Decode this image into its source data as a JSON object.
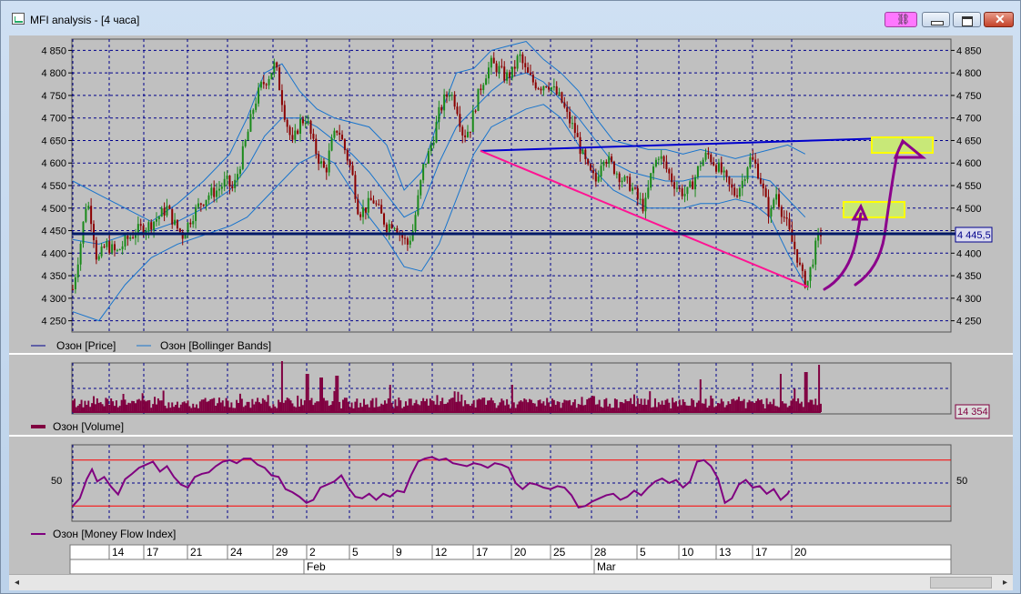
{
  "window": {
    "title": "MFI analysis - [4 часа]",
    "link_icon": "link-icon",
    "minimize_icon": "minimize-icon",
    "maximize_icon": "maximize-icon",
    "close_icon": "close-icon"
  },
  "colors": {
    "candle_up": "#1a8a1a",
    "candle_down": "#8b0000",
    "bollinger": "#1874cd",
    "volume": "#800040",
    "mfi": "#800080",
    "mfi_levels": "#ff0000",
    "grid": "#00008b",
    "trend_blue": "#0000cd",
    "trend_pink": "#ff1493",
    "highlight_fill": "#c8e878",
    "highlight_border": "#ffff00",
    "annotation": "#8b008b"
  },
  "chart_data": [
    {
      "type": "candlestick",
      "legend": [
        "Озон [Price]",
        "Озон [Bollinger Bands]"
      ],
      "y_ticks": [
        "4 850",
        "4 800",
        "4 750",
        "4 700",
        "4 650",
        "4 600",
        "4 550",
        "4 500",
        "4 450",
        "4 400",
        "4 350",
        "4 300",
        "4 250"
      ],
      "y_tick_values": [
        4850,
        4800,
        4750,
        4700,
        4650,
        4600,
        4550,
        4500,
        4450,
        4400,
        4350,
        4300,
        4250
      ],
      "ylim": [
        4225,
        4875
      ],
      "current_price_label": "4 445,5",
      "current_price": 4445.5,
      "close_path": [
        [
          0,
          4320
        ],
        [
          8,
          4410
        ],
        [
          16,
          4520
        ],
        [
          22,
          4470
        ],
        [
          28,
          4380
        ],
        [
          38,
          4420
        ],
        [
          50,
          4400
        ],
        [
          62,
          4430
        ],
        [
          74,
          4450
        ],
        [
          86,
          4460
        ],
        [
          98,
          4480
        ],
        [
          108,
          4500
        ],
        [
          118,
          4460
        ],
        [
          126,
          4440
        ],
        [
          136,
          4480
        ],
        [
          146,
          4510
        ],
        [
          156,
          4530
        ],
        [
          166,
          4540
        ],
        [
          176,
          4560
        ],
        [
          184,
          4540
        ],
        [
          192,
          4600
        ],
        [
          200,
          4660
        ],
        [
          208,
          4730
        ],
        [
          216,
          4770
        ],
        [
          224,
          4790
        ],
        [
          232,
          4820
        ],
        [
          238,
          4760
        ],
        [
          244,
          4700
        ],
        [
          252,
          4640
        ],
        [
          260,
          4690
        ],
        [
          268,
          4700
        ],
        [
          276,
          4640
        ],
        [
          284,
          4600
        ],
        [
          290,
          4580
        ],
        [
          296,
          4640
        ],
        [
          304,
          4680
        ],
        [
          312,
          4630
        ],
        [
          320,
          4580
        ],
        [
          328,
          4490
        ],
        [
          336,
          4500
        ],
        [
          344,
          4520
        ],
        [
          352,
          4490
        ],
        [
          360,
          4460
        ],
        [
          368,
          4470
        ],
        [
          376,
          4440
        ],
        [
          384,
          4420
        ],
        [
          390,
          4450
        ],
        [
          396,
          4520
        ],
        [
          402,
          4590
        ],
        [
          408,
          4620
        ],
        [
          414,
          4660
        ],
        [
          420,
          4710
        ],
        [
          426,
          4740
        ],
        [
          432,
          4760
        ],
        [
          440,
          4730
        ],
        [
          448,
          4660
        ],
        [
          456,
          4680
        ],
        [
          462,
          4730
        ],
        [
          468,
          4770
        ],
        [
          474,
          4800
        ],
        [
          480,
          4820
        ],
        [
          488,
          4810
        ],
        [
          496,
          4790
        ],
        [
          504,
          4800
        ],
        [
          512,
          4840
        ],
        [
          520,
          4800
        ],
        [
          528,
          4780
        ],
        [
          536,
          4770
        ],
        [
          544,
          4780
        ],
        [
          552,
          4760
        ],
        [
          560,
          4740
        ],
        [
          568,
          4700
        ],
        [
          576,
          4670
        ],
        [
          584,
          4620
        ],
        [
          592,
          4580
        ],
        [
          600,
          4560
        ],
        [
          608,
          4620
        ],
        [
          616,
          4600
        ],
        [
          624,
          4580
        ],
        [
          632,
          4560
        ],
        [
          640,
          4550
        ],
        [
          648,
          4520
        ],
        [
          656,
          4500
        ],
        [
          664,
          4580
        ],
        [
          672,
          4620
        ],
        [
          680,
          4590
        ],
        [
          688,
          4560
        ],
        [
          696,
          4540
        ],
        [
          704,
          4530
        ],
        [
          712,
          4560
        ],
        [
          720,
          4600
        ],
        [
          728,
          4620
        ],
        [
          736,
          4600
        ],
        [
          744,
          4580
        ],
        [
          752,
          4550
        ],
        [
          760,
          4530
        ],
        [
          768,
          4560
        ],
        [
          776,
          4610
        ],
        [
          782,
          4600
        ],
        [
          788,
          4570
        ],
        [
          794,
          4520
        ],
        [
          800,
          4480
        ],
        [
          806,
          4540
        ],
        [
          812,
          4500
        ],
        [
          818,
          4470
        ],
        [
          824,
          4430
        ],
        [
          830,
          4400
        ],
        [
          836,
          4350
        ],
        [
          842,
          4330
        ],
        [
          848,
          4380
        ],
        [
          854,
          4430
        ],
        [
          858,
          4445
        ]
      ],
      "bb_upper": [
        [
          0,
          4560
        ],
        [
          30,
          4530
        ],
        [
          60,
          4500
        ],
        [
          90,
          4470
        ],
        [
          120,
          4510
        ],
        [
          150,
          4560
        ],
        [
          180,
          4620
        ],
        [
          200,
          4700
        ],
        [
          220,
          4800
        ],
        [
          240,
          4820
        ],
        [
          260,
          4760
        ],
        [
          280,
          4720
        ],
        [
          300,
          4700
        ],
        [
          320,
          4690
        ],
        [
          340,
          4680
        ],
        [
          360,
          4640
        ],
        [
          380,
          4540
        ],
        [
          400,
          4580
        ],
        [
          420,
          4700
        ],
        [
          440,
          4800
        ],
        [
          460,
          4810
        ],
        [
          480,
          4850
        ],
        [
          500,
          4860
        ],
        [
          520,
          4870
        ],
        [
          540,
          4830
        ],
        [
          560,
          4800
        ],
        [
          580,
          4760
        ],
        [
          600,
          4700
        ],
        [
          620,
          4650
        ],
        [
          640,
          4640
        ],
        [
          660,
          4630
        ],
        [
          680,
          4630
        ],
        [
          700,
          4620
        ],
        [
          720,
          4630
        ],
        [
          740,
          4620
        ],
        [
          760,
          4610
        ],
        [
          780,
          4620
        ],
        [
          800,
          4630
        ],
        [
          820,
          4640
        ],
        [
          840,
          4620
        ]
      ],
      "bb_mid": [
        [
          0,
          4430
        ],
        [
          30,
          4420
        ],
        [
          60,
          4440
        ],
        [
          90,
          4450
        ],
        [
          120,
          4470
        ],
        [
          150,
          4500
        ],
        [
          180,
          4540
        ],
        [
          200,
          4590
        ],
        [
          220,
          4660
        ],
        [
          240,
          4700
        ],
        [
          260,
          4700
        ],
        [
          280,
          4680
        ],
        [
          300,
          4650
        ],
        [
          320,
          4620
        ],
        [
          340,
          4580
        ],
        [
          360,
          4530
        ],
        [
          380,
          4480
        ],
        [
          400,
          4500
        ],
        [
          420,
          4600
        ],
        [
          440,
          4680
        ],
        [
          460,
          4720
        ],
        [
          480,
          4760
        ],
        [
          500,
          4790
        ],
        [
          520,
          4800
        ],
        [
          540,
          4780
        ],
        [
          560,
          4740
        ],
        [
          580,
          4700
        ],
        [
          600,
          4650
        ],
        [
          620,
          4600
        ],
        [
          640,
          4580
        ],
        [
          660,
          4570
        ],
        [
          680,
          4560
        ],
        [
          700,
          4560
        ],
        [
          720,
          4570
        ],
        [
          740,
          4570
        ],
        [
          760,
          4570
        ],
        [
          780,
          4570
        ],
        [
          800,
          4560
        ],
        [
          820,
          4520
        ],
        [
          840,
          4480
        ]
      ],
      "bb_lower": [
        [
          0,
          4270
        ],
        [
          30,
          4250
        ],
        [
          60,
          4330
        ],
        [
          90,
          4390
        ],
        [
          120,
          4420
        ],
        [
          150,
          4440
        ],
        [
          180,
          4460
        ],
        [
          200,
          4480
        ],
        [
          220,
          4520
        ],
        [
          240,
          4560
        ],
        [
          260,
          4600
        ],
        [
          280,
          4620
        ],
        [
          300,
          4600
        ],
        [
          320,
          4540
        ],
        [
          340,
          4480
        ],
        [
          360,
          4430
        ],
        [
          380,
          4370
        ],
        [
          400,
          4360
        ],
        [
          420,
          4420
        ],
        [
          440,
          4520
        ],
        [
          460,
          4620
        ],
        [
          480,
          4680
        ],
        [
          500,
          4700
        ],
        [
          520,
          4720
        ],
        [
          540,
          4730
        ],
        [
          560,
          4700
        ],
        [
          580,
          4640
        ],
        [
          600,
          4580
        ],
        [
          620,
          4540
        ],
        [
          640,
          4520
        ],
        [
          660,
          4500
        ],
        [
          680,
          4500
        ],
        [
          700,
          4500
        ],
        [
          720,
          4510
        ],
        [
          740,
          4510
        ],
        [
          760,
          4520
        ],
        [
          780,
          4510
        ],
        [
          800,
          4480
        ],
        [
          820,
          4400
        ],
        [
          840,
          4330
        ]
      ]
    },
    {
      "type": "bar",
      "legend": [
        "Озон [Volume]"
      ],
      "current_value_label": "14 354",
      "current_value": 14354
    },
    {
      "type": "line",
      "legend": [
        "Озон [Money Flow Index]"
      ],
      "y_ticks": [
        "50"
      ],
      "ylim": [
        0,
        100
      ],
      "levels": [
        80,
        20
      ],
      "values": [
        [
          0,
          20
        ],
        [
          8,
          30
        ],
        [
          16,
          55
        ],
        [
          22,
          68
        ],
        [
          28,
          52
        ],
        [
          36,
          58
        ],
        [
          44,
          45
        ],
        [
          52,
          35
        ],
        [
          60,
          55
        ],
        [
          68,
          62
        ],
        [
          76,
          70
        ],
        [
          84,
          74
        ],
        [
          92,
          78
        ],
        [
          100,
          65
        ],
        [
          108,
          72
        ],
        [
          116,
          58
        ],
        [
          124,
          48
        ],
        [
          132,
          44
        ],
        [
          140,
          58
        ],
        [
          148,
          62
        ],
        [
          156,
          64
        ],
        [
          164,
          72
        ],
        [
          172,
          78
        ],
        [
          180,
          80
        ],
        [
          188,
          76
        ],
        [
          196,
          82
        ],
        [
          204,
          82
        ],
        [
          212,
          74
        ],
        [
          220,
          70
        ],
        [
          228,
          60
        ],
        [
          236,
          58
        ],
        [
          244,
          42
        ],
        [
          252,
          38
        ],
        [
          260,
          32
        ],
        [
          268,
          24
        ],
        [
          276,
          28
        ],
        [
          284,
          44
        ],
        [
          292,
          48
        ],
        [
          300,
          52
        ],
        [
          308,
          60
        ],
        [
          316,
          44
        ],
        [
          324,
          32
        ],
        [
          332,
          30
        ],
        [
          340,
          36
        ],
        [
          348,
          28
        ],
        [
          356,
          36
        ],
        [
          364,
          32
        ],
        [
          372,
          40
        ],
        [
          380,
          38
        ],
        [
          388,
          60
        ],
        [
          396,
          78
        ],
        [
          404,
          82
        ],
        [
          412,
          84
        ],
        [
          420,
          80
        ],
        [
          428,
          82
        ],
        [
          436,
          76
        ],
        [
          444,
          74
        ],
        [
          452,
          72
        ],
        [
          460,
          76
        ],
        [
          468,
          74
        ],
        [
          476,
          70
        ],
        [
          484,
          76
        ],
        [
          492,
          74
        ],
        [
          500,
          70
        ],
        [
          508,
          50
        ],
        [
          516,
          42
        ],
        [
          524,
          50
        ],
        [
          532,
          48
        ],
        [
          540,
          44
        ],
        [
          548,
          42
        ],
        [
          556,
          46
        ],
        [
          564,
          44
        ],
        [
          572,
          34
        ],
        [
          580,
          18
        ],
        [
          588,
          20
        ],
        [
          596,
          26
        ],
        [
          604,
          30
        ],
        [
          612,
          34
        ],
        [
          620,
          36
        ],
        [
          628,
          28
        ],
        [
          636,
          32
        ],
        [
          644,
          40
        ],
        [
          652,
          34
        ],
        [
          660,
          44
        ],
        [
          668,
          52
        ],
        [
          676,
          56
        ],
        [
          684,
          50
        ],
        [
          692,
          54
        ],
        [
          700,
          44
        ],
        [
          708,
          52
        ],
        [
          716,
          78
        ],
        [
          724,
          80
        ],
        [
          732,
          72
        ],
        [
          740,
          56
        ],
        [
          748,
          24
        ],
        [
          756,
          30
        ],
        [
          764,
          48
        ],
        [
          772,
          54
        ],
        [
          780,
          44
        ],
        [
          788,
          46
        ],
        [
          796,
          36
        ],
        [
          804,
          42
        ],
        [
          812,
          28
        ],
        [
          820,
          36
        ],
        [
          822,
          40
        ]
      ]
    }
  ],
  "x_axis": {
    "day_labels": [
      "14",
      "17",
      "21",
      "24",
      "29",
      "2",
      "5",
      "9",
      "12",
      "17",
      "20",
      "25",
      "28",
      "5",
      "10",
      "13",
      "17",
      "20"
    ],
    "month_labels": [
      "Feb",
      "Mar"
    ]
  },
  "annotations": {
    "trend_blue": [
      [
        4510,
        4627
      ],
      [
        4945,
        4657
      ]
    ],
    "trend_pink": [
      [
        4510,
        4627
      ],
      [
        4875,
        4325
      ]
    ]
  },
  "scrollbar": {
    "left_arrow": "◂",
    "right_arrow": "▸"
  }
}
